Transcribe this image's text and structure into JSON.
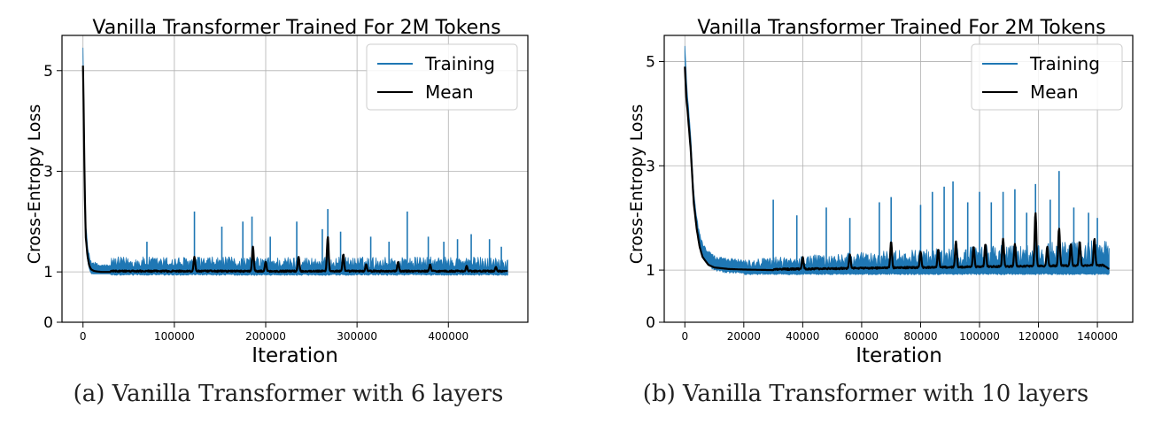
{
  "chart_data": [
    {
      "type": "line",
      "title": "Vanilla Transformer Trained For 2M Tokens",
      "xlabel": "Iteration",
      "ylabel": "Cross-Entropy Loss",
      "xlim": [
        -23000,
        487000
      ],
      "ylim": [
        0,
        5.7
      ],
      "x_ticks": [
        0,
        100000,
        200000,
        300000,
        400000
      ],
      "x_tick_labels": [
        "0",
        "100000",
        "200000",
        "300000",
        "400000"
      ],
      "y_ticks": [
        0,
        1,
        3,
        5
      ],
      "y_tick_labels": [
        "0",
        "1",
        "3",
        "5"
      ],
      "grid": true,
      "legend": "top-right",
      "caption": "(a) Vanilla Transformer with 6 layers",
      "series": [
        {
          "name": "Training",
          "color": "#1f77b4",
          "x_max": 465000,
          "decay_x": [
            0,
            1000,
            2000,
            3000,
            5000,
            7000,
            9000,
            12000,
            15000,
            20000,
            30000
          ],
          "decay_y": [
            5.4,
            4.2,
            2.8,
            1.9,
            1.4,
            1.2,
            1.1,
            1.08,
            1.05,
            1.03,
            1.02
          ],
          "floor": 0.96,
          "noise_top": 1.3,
          "spike_x": [
            70000,
            122000,
            152000,
            175000,
            185000,
            205000,
            234000,
            262000,
            268000,
            282000,
            315000,
            335000,
            355000,
            378000,
            395000,
            410000,
            425000,
            445000,
            458000
          ],
          "spike_y": [
            1.6,
            2.2,
            1.9,
            2.0,
            2.1,
            1.7,
            2.0,
            1.85,
            2.25,
            1.8,
            1.7,
            1.6,
            2.2,
            1.7,
            1.6,
            1.65,
            1.75,
            1.65,
            1.5
          ]
        },
        {
          "name": "Mean",
          "color": "#000000",
          "decay_x": [
            0,
            1000,
            2000,
            3000,
            5000,
            7000,
            9000,
            12000,
            15000,
            20000,
            30000
          ],
          "decay_y": [
            5.1,
            3.8,
            2.5,
            1.7,
            1.3,
            1.12,
            1.05,
            1.02,
            1.01,
            1.0,
            1.0
          ],
          "plateau": 1.0,
          "end_value": 1.02,
          "spike_x": [
            122000,
            186000,
            200000,
            236000,
            268000,
            285000,
            310000,
            345000,
            380000,
            420000,
            452000
          ],
          "spike_y": [
            1.3,
            1.5,
            1.2,
            1.3,
            1.7,
            1.35,
            1.15,
            1.2,
            1.15,
            1.12,
            1.1
          ]
        }
      ]
    },
    {
      "type": "line",
      "title": "Vanilla Transformer Trained For 2M Tokens",
      "xlabel": "Iteration",
      "ylabel": "Cross-Entropy Loss",
      "xlim": [
        -7000,
        152000
      ],
      "ylim": [
        0,
        5.5
      ],
      "x_ticks": [
        0,
        20000,
        40000,
        60000,
        80000,
        100000,
        120000,
        140000
      ],
      "x_tick_labels": [
        "0",
        "20000",
        "40000",
        "60000",
        "80000",
        "100000",
        "120000",
        "140000"
      ],
      "y_ticks": [
        0,
        1,
        3,
        5
      ],
      "y_tick_labels": [
        "0",
        "1",
        "3",
        "5"
      ],
      "grid": true,
      "legend": "top-right",
      "caption": "(b) Vanilla Transformer with 10 layers",
      "series": [
        {
          "name": "Training",
          "color": "#1f77b4",
          "x_max": 144000,
          "decay_x": [
            0,
            500,
            1000,
            2000,
            3000,
            4000,
            5000,
            6000,
            8000,
            10000,
            15000,
            20000
          ],
          "decay_y": [
            5.2,
            4.6,
            4.2,
            3.5,
            2.4,
            1.9,
            1.6,
            1.4,
            1.25,
            1.15,
            1.1,
            1.08
          ],
          "floor": 0.94,
          "noise_top_start": 1.22,
          "noise_top_end": 1.6,
          "spike_x": [
            30000,
            38000,
            48000,
            56000,
            66000,
            70000,
            80000,
            84000,
            88000,
            91000,
            96000,
            100000,
            104000,
            108000,
            112000,
            116000,
            119000,
            124000,
            127000,
            132000,
            137000,
            140000
          ],
          "spike_y": [
            2.35,
            2.05,
            2.2,
            2.0,
            2.3,
            2.4,
            2.25,
            2.5,
            2.6,
            2.7,
            2.3,
            2.5,
            2.3,
            2.5,
            2.55,
            2.1,
            2.65,
            2.35,
            2.9,
            2.2,
            2.1,
            2.0
          ]
        },
        {
          "name": "Mean",
          "color": "#000000",
          "decay_x": [
            0,
            500,
            1000,
            2000,
            3000,
            4000,
            5000,
            6000,
            8000,
            10000,
            15000,
            20000,
            30000
          ],
          "decay_y": [
            4.9,
            4.3,
            4.0,
            3.3,
            2.3,
            1.8,
            1.45,
            1.25,
            1.1,
            1.05,
            1.02,
            1.01,
            1.0
          ],
          "plateau_start": 1.0,
          "plateau_end": 1.08,
          "end_value": 1.02,
          "spike_x": [
            40000,
            56000,
            70000,
            80000,
            86000,
            92000,
            98000,
            102000,
            108000,
            112000,
            119000,
            123000,
            127000,
            131000,
            134000,
            139000
          ],
          "spike_y": [
            1.25,
            1.3,
            1.55,
            1.35,
            1.4,
            1.55,
            1.45,
            1.5,
            1.6,
            1.5,
            2.1,
            1.45,
            1.8,
            1.5,
            1.55,
            1.6
          ]
        }
      ]
    }
  ]
}
